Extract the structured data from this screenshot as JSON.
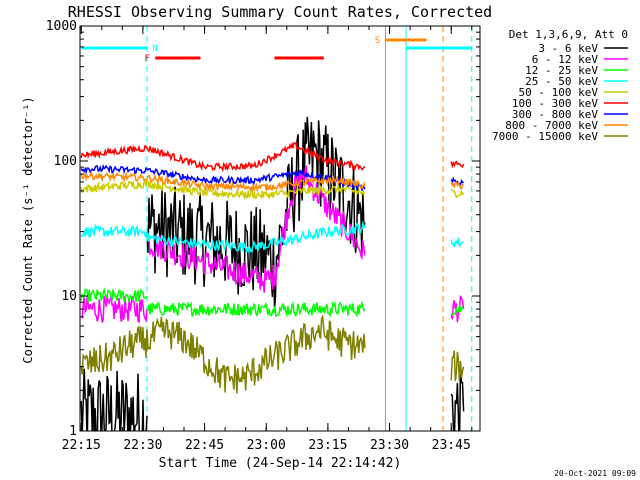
{
  "chart_data": {
    "type": "line",
    "title": "RHESSI Observing Summary Count Rates, Corrected",
    "xlabel": "Start Time (24-Sep-14 22:14:42)",
    "ylabel": "Corrected Count Rate (s⁻¹ detector⁻¹)",
    "yscale": "log",
    "xlim": [
      "22:14:42",
      "23:52:00"
    ],
    "ylim": [
      1,
      1000
    ],
    "x_ticks": [
      "22:15",
      "22:30",
      "22:45",
      "23:00",
      "23:15",
      "23:30",
      "23:45"
    ],
    "y_ticks": [
      "1",
      "10",
      "100",
      "1000"
    ],
    "timestamp": "20-Oct-2021 09:09",
    "legend": {
      "header": "Det 1,3,6,9, Att 0",
      "placement": "right"
    },
    "flags": [
      {
        "label": "N",
        "color": "#00ffff",
        "segments": [
          [
            "22:15",
            "22:31"
          ],
          [
            "23:34",
            "23:50"
          ]
        ]
      },
      {
        "label": "F",
        "color": "#ff0000",
        "segments": [
          [
            "22:33",
            "22:44"
          ],
          [
            "23:02",
            "23:14"
          ]
        ]
      },
      {
        "label": "S",
        "color": "#ff8800",
        "segments": [
          [
            "23:29",
            "23:39"
          ]
        ]
      }
    ],
    "vlines": [
      {
        "t": "22:31",
        "color": "#00ffff",
        "style": "dashed"
      },
      {
        "t": "23:29",
        "color": "#ff8800",
        "style": "solid"
      },
      {
        "t": "23:34",
        "color": "#00ffff",
        "style": "solid"
      },
      {
        "t": "23:43",
        "color": "#ff8800",
        "style": "dashed"
      },
      {
        "t": "23:50",
        "color": "#00ffff",
        "style": "dashed"
      }
    ],
    "series": [
      {
        "name": "3 - 6 keV",
        "color": "#000000",
        "segments": [
          {
            "x": [
              "22:15",
              "22:31"
            ],
            "y": [
              1.3,
              1.3
            ]
          },
          {
            "x": [
              "22:31",
              "22:40",
              "22:50",
              "23:00",
              "23:02",
              "23:06",
              "23:09",
              "23:12",
              "23:15",
              "23:20",
              "23:24"
            ],
            "y": [
              33,
              28,
              24,
              20,
              17,
              55,
              90,
              110,
              85,
              52,
              35
            ]
          },
          {
            "x": [
              "23:45",
              "23:48"
            ],
            "y": [
              1.5,
              1.4
            ]
          }
        ]
      },
      {
        "name": "6 - 12 keV",
        "color": "#ff00ff",
        "segments": [
          {
            "x": [
              "22:15",
              "22:31"
            ],
            "y": [
              8,
              8
            ]
          },
          {
            "x": [
              "22:31",
              "22:40",
              "22:50",
              "23:00",
              "23:02",
              "23:06",
              "23:09",
              "23:12",
              "23:15",
              "23:20",
              "23:24"
            ],
            "y": [
              25,
              20,
              16,
              13,
              14,
              55,
              80,
              60,
              45,
              30,
              20
            ]
          },
          {
            "x": [
              "23:45",
              "23:48"
            ],
            "y": [
              8,
              8
            ]
          }
        ]
      },
      {
        "name": "12 - 25 keV",
        "color": "#00ff00",
        "segments": [
          {
            "x": [
              "22:15",
              "22:31"
            ],
            "y": [
              10,
              10
            ]
          },
          {
            "x": [
              "22:31",
              "23:24"
            ],
            "y": [
              8,
              8
            ]
          },
          {
            "x": [
              "23:45",
              "23:48"
            ],
            "y": [
              8,
              8
            ]
          }
        ]
      },
      {
        "name": "25 - 50 keV",
        "color": "#00ffff",
        "segments": [
          {
            "x": [
              "22:15",
              "22:31"
            ],
            "y": [
              30,
              30
            ]
          },
          {
            "x": [
              "22:31",
              "22:45",
              "22:57",
              "23:06",
              "23:15",
              "23:24"
            ],
            "y": [
              27,
              24,
              23,
              26,
              30,
              32
            ]
          },
          {
            "x": [
              "23:45",
              "23:48"
            ],
            "y": [
              25,
              25
            ]
          }
        ]
      },
      {
        "name": "50 - 100 keV",
        "color": "#cccc00",
        "segments": [
          {
            "x": [
              "22:15",
              "22:31",
              "22:45",
              "23:00",
              "23:10",
              "23:18",
              "23:24"
            ],
            "y": [
              62,
              68,
              58,
              56,
              60,
              62,
              58
            ]
          },
          {
            "x": [
              "23:45",
              "23:48"
            ],
            "y": [
              58,
              58
            ]
          }
        ]
      },
      {
        "name": "100 - 300 keV",
        "color": "#ff0000",
        "segments": [
          {
            "x": [
              "22:15",
              "22:31",
              "22:45",
              "22:57",
              "23:07",
              "23:15",
              "23:24"
            ],
            "y": [
              110,
              125,
              90,
              92,
              130,
              100,
              90
            ]
          },
          {
            "x": [
              "23:45",
              "23:48"
            ],
            "y": [
              95,
              95
            ]
          }
        ]
      },
      {
        "name": "300 - 800 keV",
        "color": "#0000ff",
        "segments": [
          {
            "x": [
              "22:15",
              "22:31",
              "22:45",
              "22:57",
              "23:08",
              "23:15",
              "23:24"
            ],
            "y": [
              88,
              85,
              72,
              72,
              82,
              75,
              62
            ]
          },
          {
            "x": [
              "23:45",
              "23:48"
            ],
            "y": [
              70,
              70
            ]
          }
        ]
      },
      {
        "name": "800 - 7000 keV",
        "color": "#ff8800",
        "segments": [
          {
            "x": [
              "22:15",
              "22:31",
              "22:45",
              "23:00",
              "23:10",
              "23:18",
              "23:24"
            ],
            "y": [
              78,
              75,
              65,
              64,
              70,
              72,
              65
            ]
          },
          {
            "x": [
              "23:45",
              "23:48"
            ],
            "y": [
              66,
              66
            ]
          }
        ]
      },
      {
        "name": "7000 - 15000 keV",
        "color": "#808000",
        "segments": [
          {
            "x": [
              "22:15",
              "22:22",
              "22:28",
              "22:31",
              "22:35",
              "22:40",
              "22:50",
              "22:55",
              "23:00",
              "23:08",
              "23:13",
              "23:18",
              "23:22",
              "23:24"
            ],
            "y": [
              3,
              3.5,
              4.5,
              4.6,
              5.5,
              4.8,
              2.4,
              2.5,
              3.2,
              4.6,
              5.6,
              4.6,
              4.3,
              4.1
            ]
          },
          {
            "x": [
              "23:45",
              "23:48"
            ],
            "y": [
              3,
              3
            ]
          }
        ]
      }
    ]
  }
}
